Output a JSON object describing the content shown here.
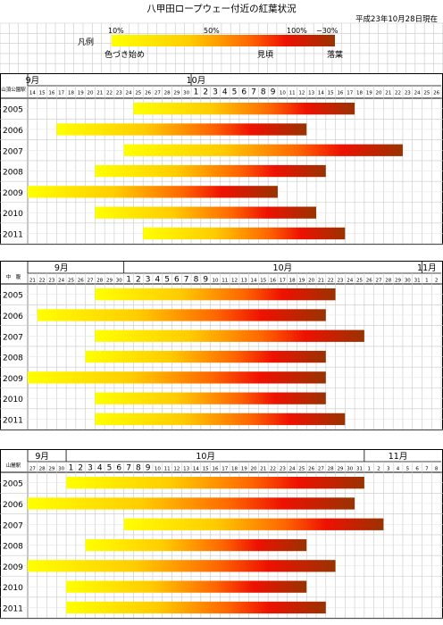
{
  "title": "八甲田ロープウェー付近の紅葉状況",
  "as_of": "平成23年10月28日現在",
  "legend": {
    "label": "凡例",
    "pct_start": "10%",
    "pct_mid": "50%",
    "pct_peak": "100%",
    "pct_end": "−30%",
    "stage_start": "色づき始め",
    "stage_peak": "見頃",
    "stage_end": "落葉",
    "colors": [
      "#ffff00",
      "#ffcc00",
      "#ff6600",
      "#ee1100",
      "#993300"
    ]
  },
  "colors": {
    "grid": "#c8c8c8",
    "border": "#000000",
    "background": "#ffffff"
  },
  "chart_data": [
    {
      "type": "gantt",
      "section_label": "山頂公園駅",
      "month_labels": [
        {
          "label": "9月",
          "day": "9-14"
        },
        {
          "label": "10月",
          "day": "10-1"
        }
      ],
      "days": [
        "9-14",
        "9-15",
        "9-16",
        "9-17",
        "9-18",
        "9-19",
        "9-20",
        "9-21",
        "9-22",
        "9-23",
        "9-24",
        "9-25",
        "9-26",
        "9-27",
        "9-28",
        "9-29",
        "9-30",
        "10-1",
        "10-2",
        "10-3",
        "10-4",
        "10-5",
        "10-6",
        "10-7",
        "10-8",
        "10-9",
        "10-10",
        "10-11",
        "10-12",
        "10-13",
        "10-14",
        "10-15",
        "10-16",
        "10-17",
        "10-18",
        "10-19",
        "10-20",
        "10-21",
        "10-22",
        "10-23",
        "10-24",
        "10-25",
        "10-26"
      ],
      "day_labels": [
        "14",
        "15",
        "16",
        "17",
        "18",
        "19",
        "20",
        "21",
        "22",
        "23",
        "24",
        "25",
        "26",
        "27",
        "28",
        "29",
        "30",
        "1",
        "2",
        "3",
        "4",
        "5",
        "6",
        "7",
        "8",
        "9",
        "10",
        "11",
        "12",
        "13",
        "14",
        "15",
        "16",
        "17",
        "18",
        "19",
        "20",
        "21",
        "22",
        "23",
        "24",
        "25",
        "26"
      ],
      "series": [
        {
          "year": "2005",
          "start": "9-25",
          "end": "10-17"
        },
        {
          "year": "2006",
          "start": "9-17",
          "end": "10-12"
        },
        {
          "year": "2007",
          "start": "9-24",
          "end": "10-22"
        },
        {
          "year": "2008",
          "start": "9-21",
          "end": "10-14"
        },
        {
          "year": "2009",
          "start": "9-14",
          "end": "10-9"
        },
        {
          "year": "2010",
          "start": "9-21",
          "end": "10-13"
        },
        {
          "year": "2011",
          "start": "9-26",
          "end": "10-16"
        }
      ]
    },
    {
      "type": "gantt",
      "section_label": "中　腹",
      "month_labels": [
        {
          "label": "9月",
          "day": "9-24"
        },
        {
          "label": "10月",
          "day": "10-17"
        },
        {
          "label": "11月",
          "day": "11-1"
        }
      ],
      "days": [
        "9-21",
        "9-22",
        "9-23",
        "9-24",
        "9-25",
        "9-26",
        "9-27",
        "9-28",
        "9-29",
        "9-30",
        "10-1",
        "10-2",
        "10-3",
        "10-4",
        "10-5",
        "10-6",
        "10-7",
        "10-8",
        "10-9",
        "10-10",
        "10-11",
        "10-12",
        "10-13",
        "10-14",
        "10-15",
        "10-16",
        "10-17",
        "10-18",
        "10-19",
        "10-20",
        "10-21",
        "10-22",
        "10-23",
        "10-24",
        "10-25",
        "10-26",
        "10-27",
        "10-28",
        "10-29",
        "10-30",
        "10-31",
        "11-1",
        "11-2"
      ],
      "day_labels": [
        "21",
        "22",
        "23",
        "24",
        "25",
        "26",
        "27",
        "28",
        "29",
        "30",
        "1",
        "2",
        "3",
        "4",
        "5",
        "6",
        "7",
        "8",
        "9",
        "10",
        "11",
        "12",
        "13",
        "14",
        "15",
        "16",
        "17",
        "18",
        "19",
        "20",
        "21",
        "22",
        "23",
        "24",
        "25",
        "26",
        "27",
        "28",
        "29",
        "30",
        "31",
        "1",
        "2"
      ],
      "series": [
        {
          "year": "2005",
          "start": "9-28",
          "end": "10-22"
        },
        {
          "year": "2006",
          "start": "9-22",
          "end": "10-21"
        },
        {
          "year": "2007",
          "start": "9-28",
          "end": "10-25"
        },
        {
          "year": "2008",
          "start": "9-27",
          "end": "10-21"
        },
        {
          "year": "2009",
          "start": "9-21",
          "end": "10-21"
        },
        {
          "year": "2010",
          "start": "9-28",
          "end": "10-21"
        },
        {
          "year": "2011",
          "start": "9-28",
          "end": "10-23"
        }
      ]
    },
    {
      "type": "gantt",
      "section_label": "山麓駅",
      "month_labels": [
        {
          "label": "9月",
          "day": "9-28"
        },
        {
          "label": "10月",
          "day": "10-15"
        },
        {
          "label": "11月",
          "day": "11-4"
        }
      ],
      "days": [
        "9-27",
        "9-28",
        "9-29",
        "9-30",
        "10-1",
        "10-2",
        "10-3",
        "10-4",
        "10-5",
        "10-6",
        "10-7",
        "10-8",
        "10-9",
        "10-10",
        "10-11",
        "10-12",
        "10-13",
        "10-14",
        "10-15",
        "10-16",
        "10-17",
        "10-18",
        "10-19",
        "10-20",
        "10-21",
        "10-22",
        "10-23",
        "10-24",
        "10-25",
        "10-26",
        "10-27",
        "10-28",
        "10-29",
        "10-30",
        "10-31",
        "11-1",
        "11-2",
        "11-3",
        "11-4",
        "11-5",
        "11-6",
        "11-7",
        "11-8"
      ],
      "day_labels": [
        "27",
        "28",
        "29",
        "30",
        "1",
        "2",
        "3",
        "4",
        "5",
        "6",
        "7",
        "8",
        "9",
        "10",
        "11",
        "12",
        "13",
        "14",
        "15",
        "16",
        "17",
        "18",
        "19",
        "20",
        "21",
        "22",
        "23",
        "24",
        "25",
        "26",
        "27",
        "28",
        "29",
        "30",
        "31",
        "1",
        "2",
        "3",
        "4",
        "5",
        "6",
        "7",
        "8"
      ],
      "series": [
        {
          "year": "2005",
          "start": "10-1",
          "end": "10-31"
        },
        {
          "year": "2006",
          "start": "9-27",
          "end": "10-30"
        },
        {
          "year": "2007",
          "start": "10-7",
          "end": "11-2"
        },
        {
          "year": "2008",
          "start": "10-3",
          "end": "10-25"
        },
        {
          "year": "2009",
          "start": "9-27",
          "end": "10-28"
        },
        {
          "year": "2010",
          "start": "10-1",
          "end": "10-25"
        },
        {
          "year": "2011",
          "start": "10-1",
          "end": "10-27"
        }
      ]
    }
  ]
}
